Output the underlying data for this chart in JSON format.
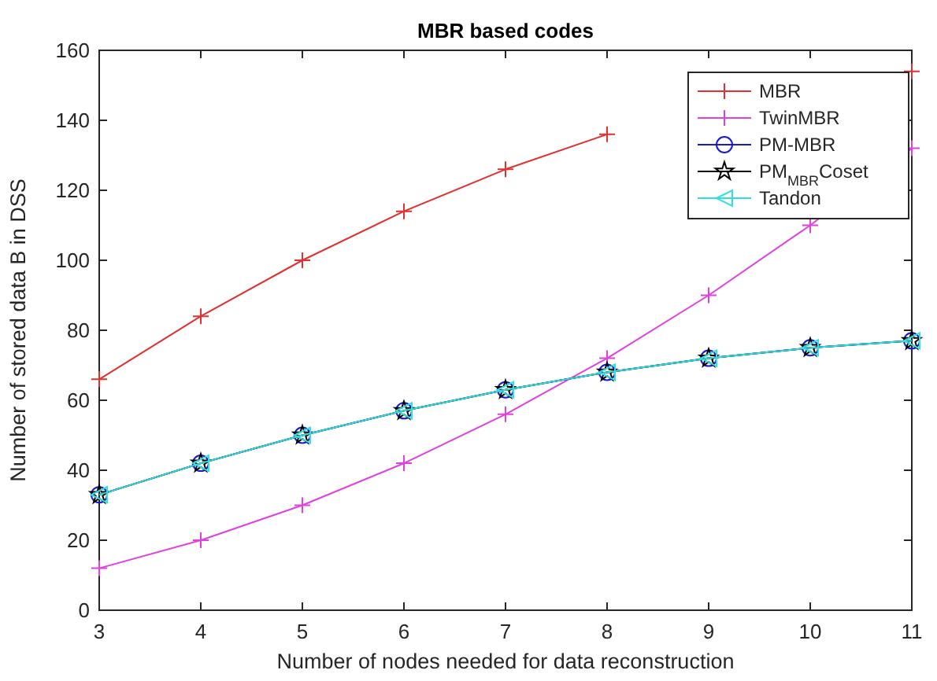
{
  "chart_data": {
    "type": "line",
    "title": "MBR based codes",
    "xlabel": "Number of nodes needed for data reconstruction",
    "ylabel": "Number of stored data B in DSS",
    "x": [
      3,
      4,
      5,
      6,
      7,
      8,
      9,
      10,
      11
    ],
    "xlim": [
      3,
      11
    ],
    "xticks": [
      3,
      4,
      5,
      6,
      7,
      8,
      9,
      10,
      11
    ],
    "ylim": [
      0,
      160
    ],
    "yticks": [
      0,
      20,
      40,
      60,
      80,
      100,
      120,
      140,
      160
    ],
    "grid": false,
    "legend": "top right",
    "series": [
      {
        "name": "MBR",
        "color": "#e03030",
        "marker": "cross",
        "values": [
          66,
          84,
          100,
          114,
          126,
          136,
          null,
          null,
          154
        ]
      },
      {
        "name": "TwinMBR",
        "color": "#e040e0",
        "marker": "cross",
        "values": [
          12,
          20,
          30,
          42,
          56,
          72,
          90,
          110,
          132
        ]
      },
      {
        "name": "PM-MBR",
        "color": "#1a1ad0",
        "marker": "circle",
        "values": [
          33,
          42,
          50,
          57,
          63,
          68,
          72,
          75,
          77
        ]
      },
      {
        "name": "PM$_{MBR}$Coset",
        "color": "#000000",
        "marker": "star",
        "values": [
          33,
          42,
          50,
          57,
          63,
          68,
          72,
          75,
          77
        ]
      },
      {
        "name": "Tandon",
        "color": "#30e0e0",
        "marker": "triangle",
        "values": [
          33,
          42,
          50,
          57,
          63,
          68,
          72,
          75,
          77
        ]
      }
    ]
  }
}
